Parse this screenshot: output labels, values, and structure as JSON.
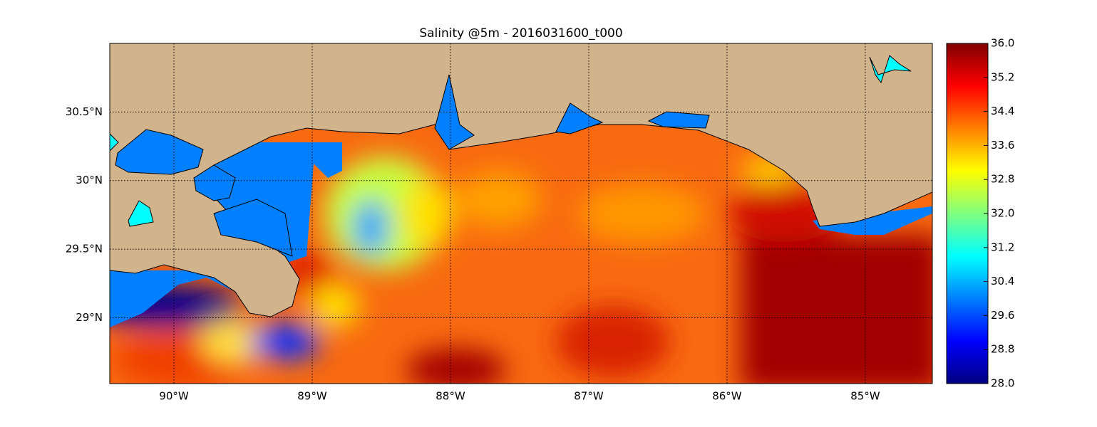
{
  "chart_data": {
    "type": "map",
    "title": "Salinity @5m - 2016031600_t000",
    "xlim": [
      -90.464,
      -84.515
    ],
    "ylim": [
      28.52,
      31.0
    ],
    "xticks": [
      {
        "value": -90,
        "label": "90°W"
      },
      {
        "value": -89,
        "label": "89°W"
      },
      {
        "value": -88,
        "label": "88°W"
      },
      {
        "value": -87,
        "label": "87°W"
      },
      {
        "value": -86,
        "label": "86°W"
      },
      {
        "value": -85,
        "label": "85°W"
      }
    ],
    "yticks": [
      {
        "value": 29,
        "label": "29°N"
      },
      {
        "value": 29.5,
        "label": "29.5°N"
      },
      {
        "value": 30,
        "label": "30°N"
      },
      {
        "value": 30.5,
        "label": "30.5°N"
      }
    ],
    "grid": true,
    "colorbar": {
      "colormap": "jet",
      "lim": [
        28.0,
        36.0
      ],
      "ticks": [
        {
          "value": 28,
          "label": "28.0"
        },
        {
          "value": 28.8,
          "label": "28.8"
        },
        {
          "value": 29.6,
          "label": "29.6"
        },
        {
          "value": 30.4,
          "label": "30.4"
        },
        {
          "value": 31.2,
          "label": "31.2"
        },
        {
          "value": 32,
          "label": "32.0"
        },
        {
          "value": 32.8,
          "label": "32.8"
        },
        {
          "value": 33.6,
          "label": "33.6"
        },
        {
          "value": 34.4,
          "label": "34.4"
        },
        {
          "value": 35.2,
          "label": "35.2"
        },
        {
          "value": 36,
          "label": "36.0"
        }
      ]
    }
  }
}
